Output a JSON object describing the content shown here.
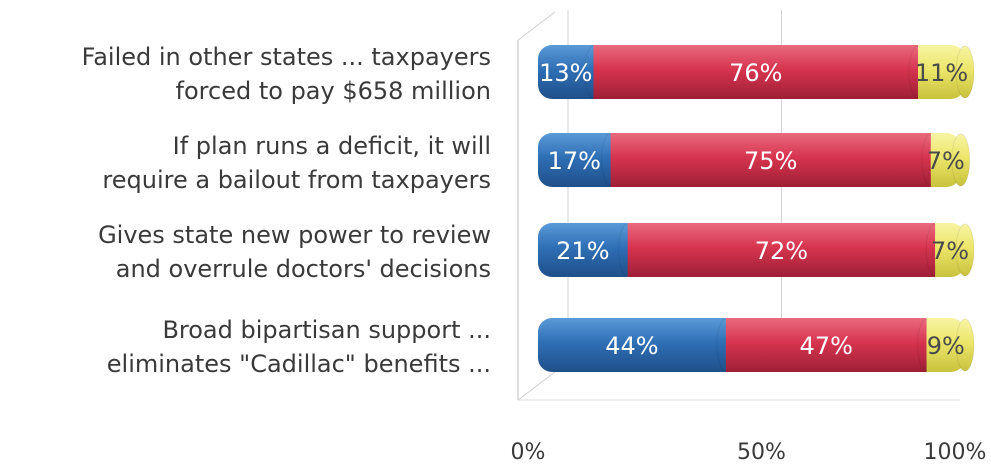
{
  "chart_data": {
    "type": "bar",
    "orientation": "horizontal",
    "stacked": true,
    "percent": true,
    "categories": [
      "Failed in other states ... taxpayers\nforced to pay $658 million",
      "If plan runs a deficit, it will\nrequire a bailout from taxpayers",
      "Gives state new power to review\nand overrule doctors' decisions",
      "Broad bipartisan support ...\neliminates \"Cadillac\" benefits ..."
    ],
    "series": [
      {
        "values": [
          13,
          17,
          21,
          44
        ],
        "labels": [
          "13%",
          "17%",
          "21%",
          "44%"
        ],
        "color": "#2f6fb5"
      },
      {
        "values": [
          76,
          75,
          72,
          47
        ],
        "labels": [
          "76%",
          "75%",
          "72%",
          "47%"
        ],
        "color": "#d7344f"
      },
      {
        "values": [
          11,
          7,
          7,
          9
        ],
        "labels": [
          "11%",
          "7%",
          "7%",
          "9%"
        ],
        "color": "#ece66a"
      }
    ],
    "xlim": [
      0,
      100
    ],
    "x_ticks": [
      "0%",
      "50%",
      "100%"
    ],
    "grid": true,
    "legend": "none"
  }
}
